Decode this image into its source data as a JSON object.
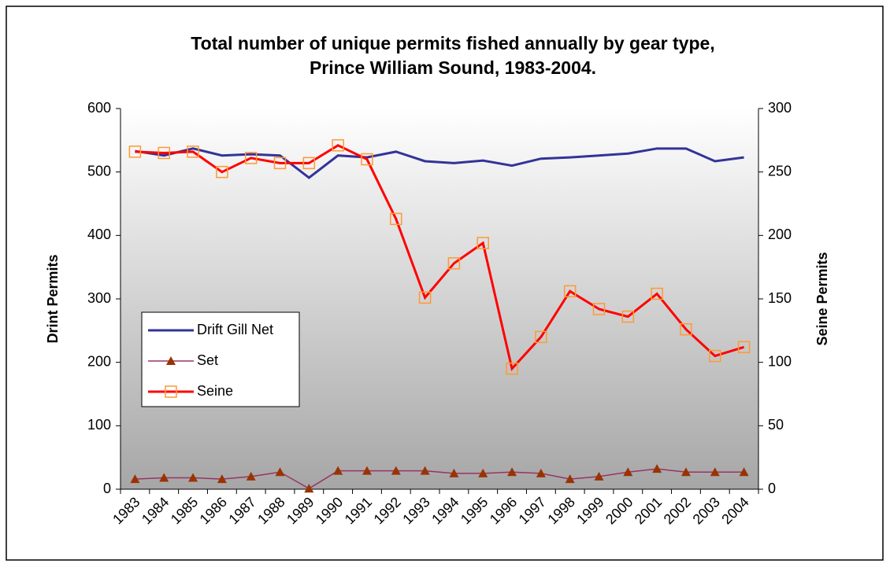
{
  "chart_data": {
    "type": "line",
    "title": [
      "Total number of unique permits fished annually by gear type,",
      "Prince William Sound, 1983-2004."
    ],
    "y_label": "Drint Permits",
    "y2_label": "Seine Permits",
    "categories": [
      "1983",
      "1984",
      "1985",
      "1986",
      "1987",
      "1988",
      "1989",
      "1990",
      "1991",
      "1992",
      "1993",
      "1994",
      "1995",
      "1996",
      "1997",
      "1998",
      "1999",
      "2000",
      "2001",
      "2002",
      "2003",
      "2004"
    ],
    "series": [
      {
        "name": "Drift Gill Net",
        "color": "#333399",
        "axis": "y",
        "marker": null,
        "values": [
          533,
          526,
          537,
          526,
          528,
          526,
          491,
          526,
          523,
          532,
          517,
          514,
          518,
          510,
          521,
          523,
          526,
          529,
          537,
          537,
          517,
          523
        ]
      },
      {
        "name": "Set",
        "color": "#993366",
        "marker_color": "#993300",
        "axis": "y",
        "marker": "triangle",
        "values": [
          16,
          18,
          18,
          16,
          20,
          27,
          1,
          29,
          29,
          29,
          29,
          25,
          25,
          27,
          25,
          16,
          20,
          27,
          32,
          27,
          27,
          27
        ]
      },
      {
        "name": "Seine",
        "color": "#ff0000",
        "marker_color": "#ff9933",
        "axis": "y2",
        "marker": "square",
        "values": [
          266,
          265,
          266,
          250,
          261,
          257,
          257,
          271,
          260,
          213,
          151,
          178,
          194,
          95,
          120,
          156,
          142,
          136,
          154,
          126,
          105,
          112
        ]
      }
    ],
    "ylim": [
      0,
      600
    ],
    "yticks": [
      0,
      100,
      200,
      300,
      400,
      500,
      600
    ],
    "y2lim": [
      0,
      300
    ],
    "y2ticks": [
      0,
      50,
      100,
      150,
      200,
      250,
      300
    ],
    "legend": "left"
  }
}
